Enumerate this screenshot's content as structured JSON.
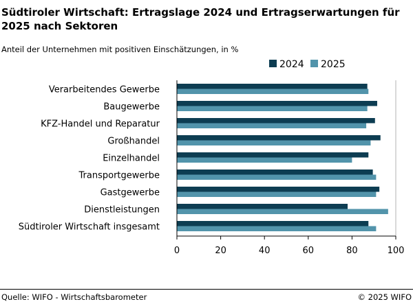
{
  "chart_data": {
    "type": "bar",
    "orientation": "horizontal",
    "title": "Südtiroler Wirtschaft: Ertragslage 2024 und Ertragserwartungen für 2025 nach Sektoren",
    "subtitle": "Anteil der Unternehmen mit positiven Einschätzungen, in %",
    "categories": [
      "Verarbeitendes Gewerbe",
      "Baugewerbe",
      "KFZ-Handel und Reparatur",
      "Großhandel",
      "Einzelhandel",
      "Transportgewerbe",
      "Gastgewerbe",
      "Dienstleistungen",
      "Südtiroler Wirtschaft insgesamt"
    ],
    "series": [
      {
        "name": "2024",
        "color": "#0d3d52",
        "values": [
          87,
          91.5,
          90.5,
          93,
          87.5,
          89.5,
          92.5,
          78,
          87.5
        ]
      },
      {
        "name": "2025",
        "color": "#5294ab",
        "values": [
          87.5,
          87,
          86.5,
          88.5,
          80,
          91,
          91,
          96.5,
          91
        ]
      }
    ],
    "xlim": [
      0,
      100
    ],
    "xticks": [
      "0",
      "20",
      "40",
      "60",
      "80",
      "100"
    ],
    "grid": "vertical at 100",
    "legend": "top-right"
  },
  "footer": {
    "source": "Quelle: WIFO - Wirtschaftsbarometer",
    "copyright": "© 2025 WIFO"
  }
}
